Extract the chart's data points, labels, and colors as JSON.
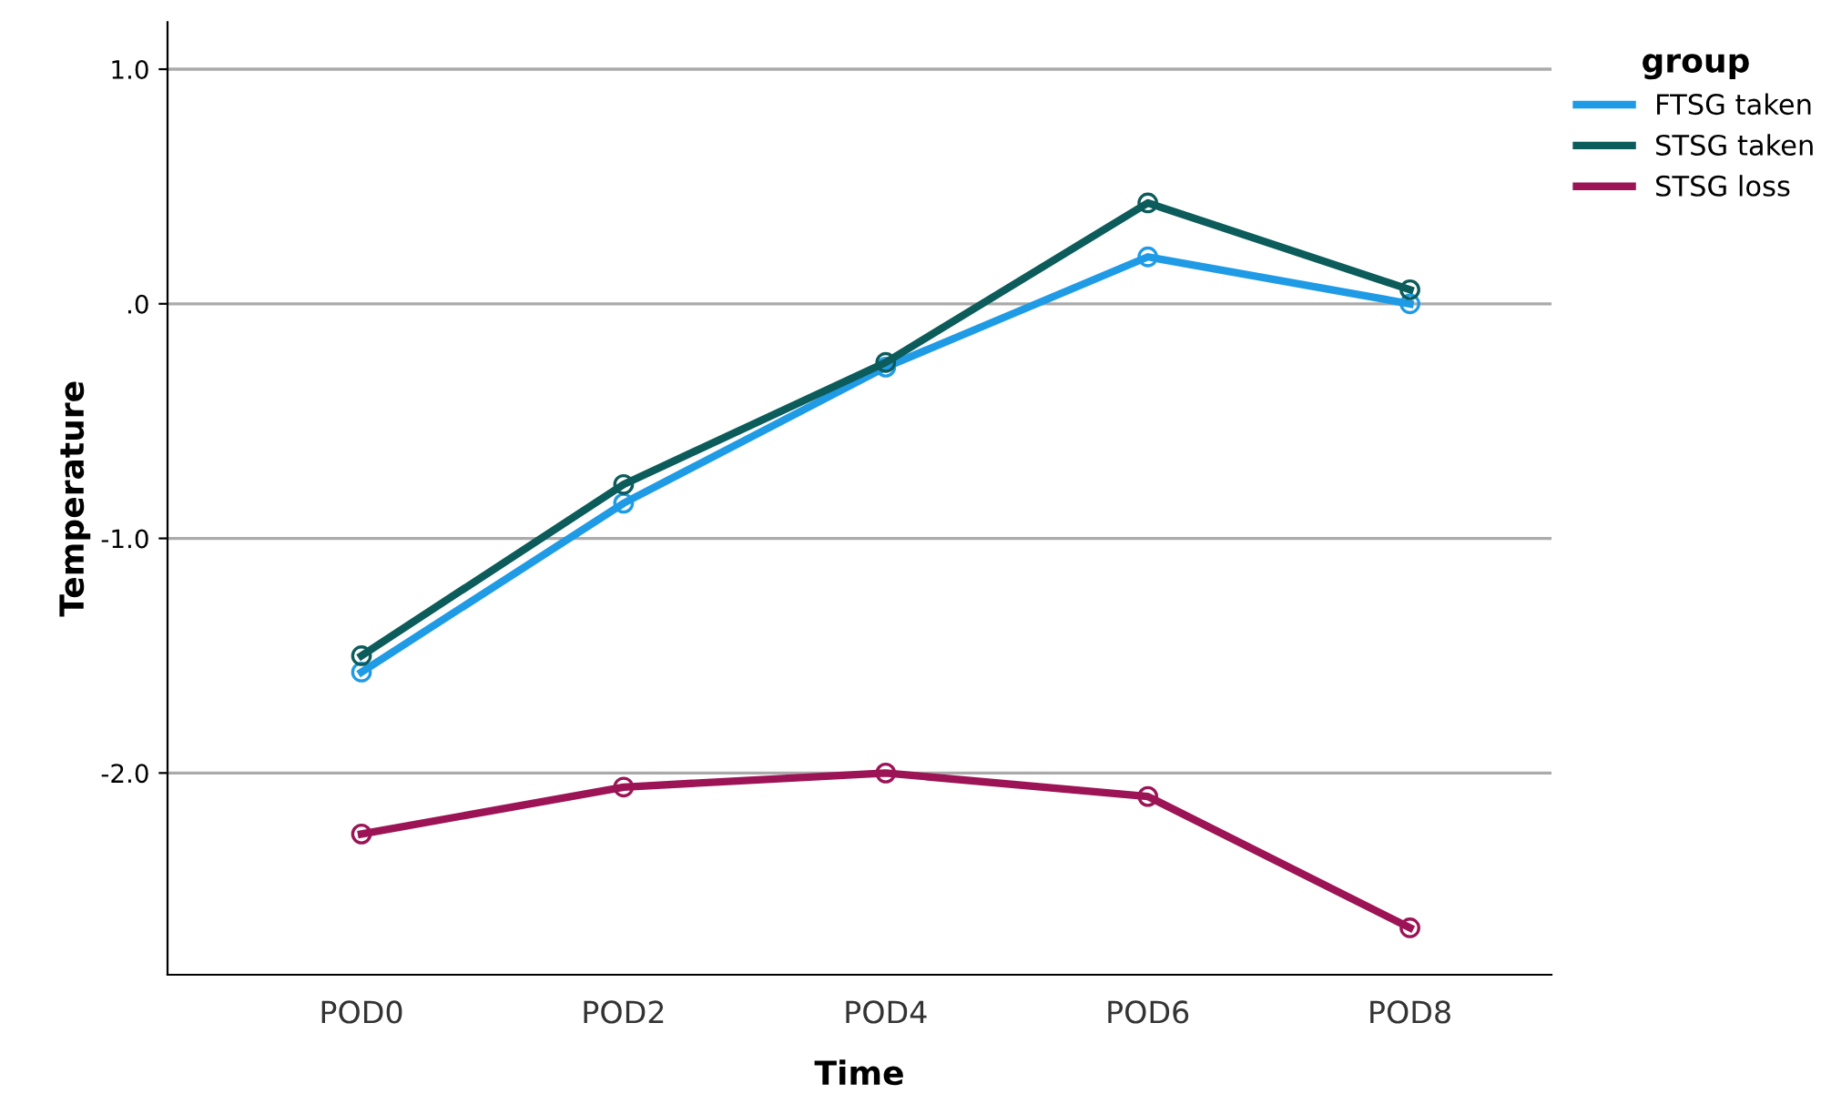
{
  "chart_data": {
    "type": "line",
    "xlabel": "Time",
    "ylabel": "Temperature",
    "legend_title": "group",
    "categories": [
      "POD0",
      "POD2",
      "POD4",
      "POD6",
      "POD8"
    ],
    "series": [
      {
        "name": "FTSG taken",
        "color": "#1f9be6",
        "values": [
          -1.57,
          -0.85,
          -0.27,
          0.2,
          0.0
        ]
      },
      {
        "name": "STSG taken",
        "color": "#0b5c5a",
        "values": [
          -1.5,
          -0.77,
          -0.25,
          0.43,
          0.06
        ]
      },
      {
        "name": "STSG loss",
        "color": "#9c1456",
        "values": [
          -2.26,
          -2.06,
          -2.0,
          -2.1,
          -2.66
        ]
      }
    ],
    "ylim": [
      -2.86,
      1.2
    ],
    "yticks": [
      {
        "value": 1.0,
        "label": "1.0"
      },
      {
        "value": 0,
        "label": ".0"
      },
      {
        "value": -1.0,
        "label": "-1.0"
      },
      {
        "value": -2.0,
        "label": "-2.0"
      }
    ],
    "grid": "y",
    "legend": "top right",
    "marker": "circle",
    "line_style": "solid"
  }
}
